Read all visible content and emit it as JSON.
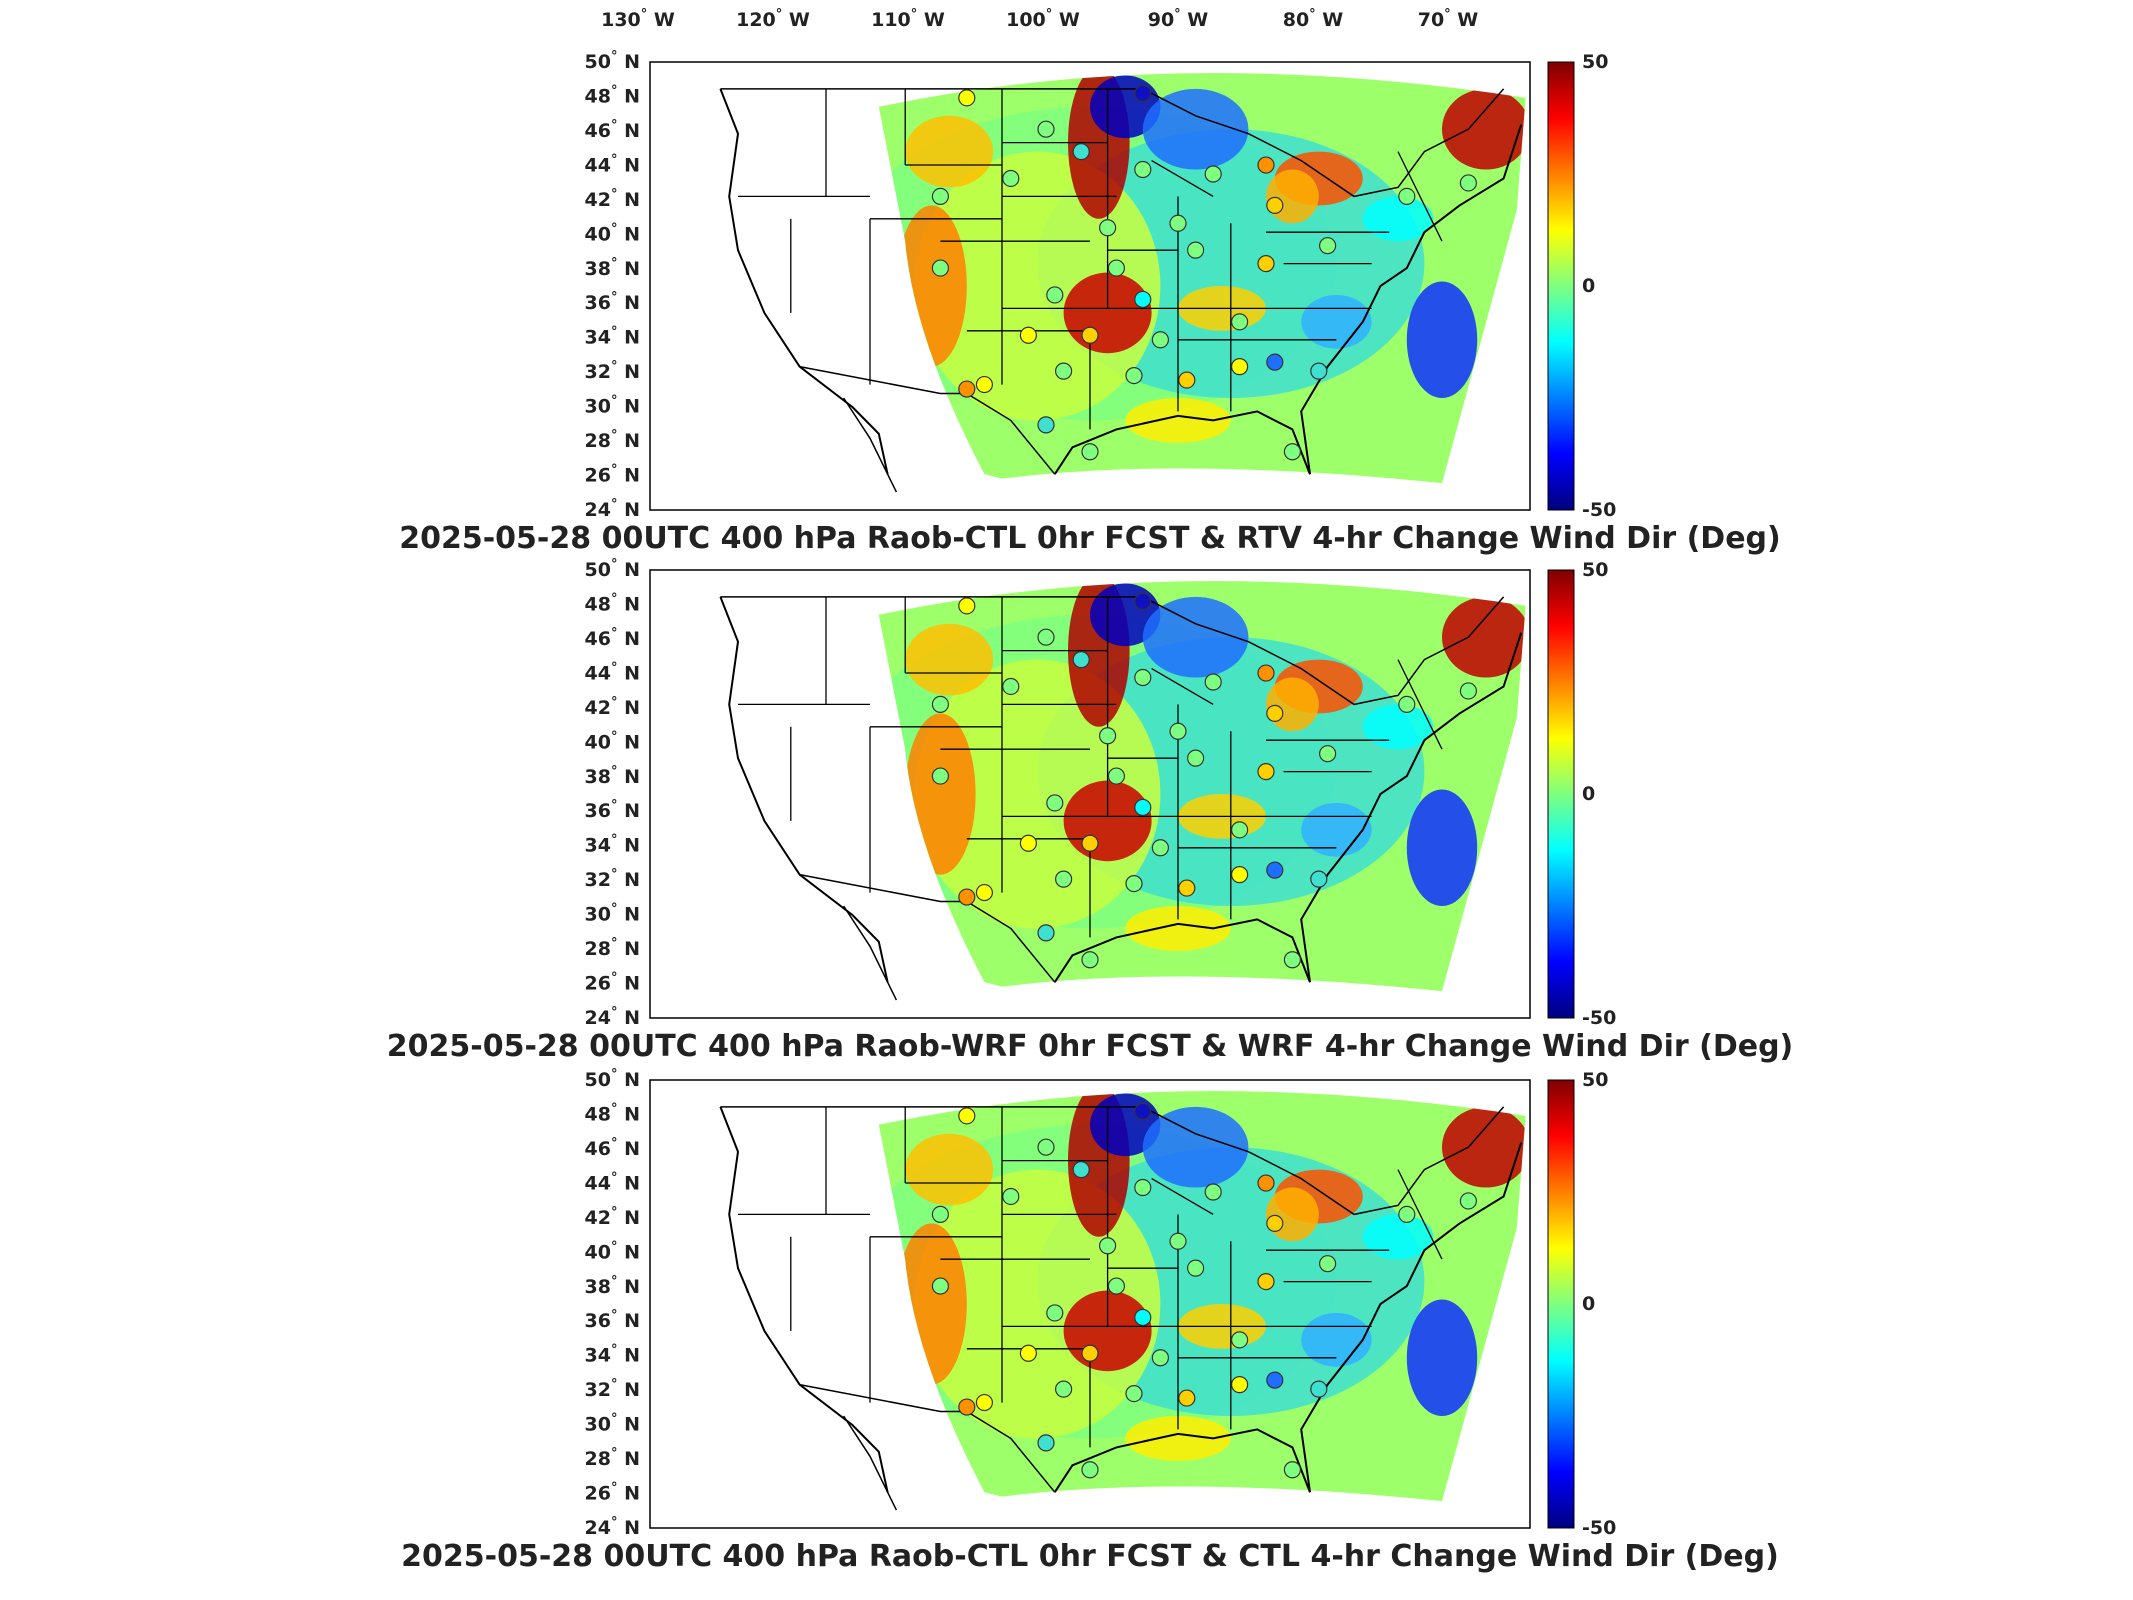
{
  "longitude_labels": [
    {
      "value": "130",
      "hemi": "W"
    },
    {
      "value": "120",
      "hemi": "W"
    },
    {
      "value": "110",
      "hemi": "W"
    },
    {
      "value": "100",
      "hemi": "W"
    },
    {
      "value": "90",
      "hemi": "W"
    },
    {
      "value": "80",
      "hemi": "W"
    },
    {
      "value": "70",
      "hemi": "W"
    }
  ],
  "latitude_labels": [
    "50",
    "48",
    "46",
    "44",
    "42",
    "40",
    "38",
    "36",
    "34",
    "32",
    "30",
    "28",
    "26",
    "24"
  ],
  "latitude_hemi": "N",
  "degree_symbol": "°",
  "colorbar": {
    "max": "50",
    "mid": "0",
    "min": "-50",
    "colors": [
      "#00007f",
      "#0000ff",
      "#007fff",
      "#00ffff",
      "#7fff7f",
      "#ffff00",
      "#ff7f00",
      "#ff0000",
      "#7f0000"
    ]
  },
  "panels": [
    {
      "title": "2025-05-28 00UTC 400 hPa Raob-CTL 0hr FCST & RTV 4-hr Change Wind Dir (Deg)"
    },
    {
      "title": "2025-05-28 00UTC 400 hPa Raob-WRF 0hr FCST & WRF 4-hr Change Wind Dir (Deg)"
    },
    {
      "title": "2025-05-28 00UTC 400 hPa Raob-CTL 0hr FCST & CTL 4-hr Change Wind Dir (Deg)"
    }
  ]
}
